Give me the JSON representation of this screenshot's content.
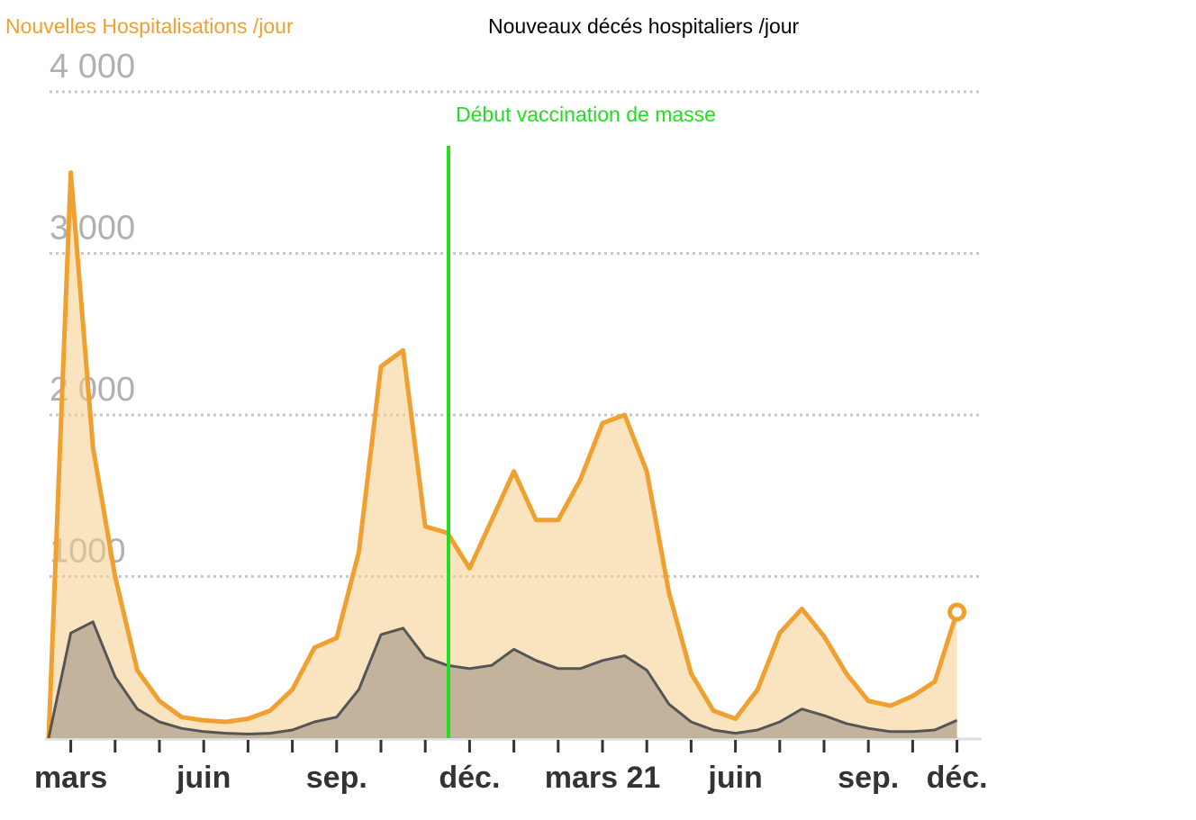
{
  "chart_data": {
    "type": "line",
    "annotation": "Début vaccination de masse",
    "categories": [
      null,
      "mars",
      null,
      null,
      null,
      null,
      null,
      "juin",
      null,
      null,
      null,
      null,
      null,
      "sep.",
      null,
      null,
      null,
      null,
      null,
      "déc.",
      null,
      null,
      null,
      null,
      null,
      "mars 21",
      null,
      null,
      null,
      null,
      null,
      "juin",
      null,
      null,
      null,
      null,
      null,
      "sep.",
      null,
      null,
      null,
      "déc."
    ],
    "series": [
      {
        "name": "Nouvelles Hospitalisations /jour",
        "color": "#f0a030",
        "values": [
          0,
          3500,
          1800,
          1000,
          420,
          230,
          130,
          110,
          100,
          120,
          170,
          300,
          560,
          620,
          1150,
          2300,
          2400,
          1310,
          1270,
          1050,
          1350,
          1650,
          1350,
          1350,
          1600,
          1950,
          2000,
          1650,
          900,
          400,
          170,
          120,
          300,
          650,
          800,
          630,
          400,
          230,
          200,
          260,
          350,
          780
        ]
      },
      {
        "name": "Nouveaux décés hospitaliers /jour",
        "color": "#555555",
        "values": [
          0,
          650,
          720,
          380,
          180,
          100,
          60,
          40,
          30,
          25,
          30,
          50,
          100,
          130,
          300,
          640,
          680,
          500,
          450,
          430,
          450,
          550,
          480,
          430,
          430,
          480,
          510,
          420,
          210,
          100,
          50,
          30,
          50,
          100,
          180,
          140,
          90,
          60,
          40,
          40,
          50,
          110
        ]
      }
    ],
    "ylim": [
      0,
      4000
    ],
    "yticks": [
      1000,
      {
        "value": 2000,
        "label": "2 000"
      },
      {
        "value": 3000,
        "label": "3 000"
      },
      {
        "value": 4000,
        "label": "4 000"
      }
    ],
    "grid": true
  }
}
